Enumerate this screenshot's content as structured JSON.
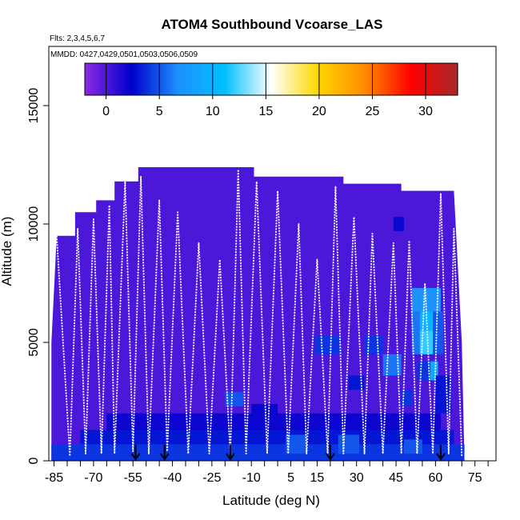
{
  "chart_data": {
    "type": "heatmap",
    "title": "ATOM4 Southbound Vcoarse_LAS",
    "flights_label": "Flts: 2,3,4,5,6,7",
    "mmdd_label": "MMDD: 0427,0429,0501,0503,0506,0509",
    "xlabel": "Latitude (deg N)",
    "ylabel": "Altitude (m)",
    "xlim": [
      -87,
      83
    ],
    "ylim": [
      0,
      17500
    ],
    "x_ticks": [
      -85,
      -70,
      -55,
      -40,
      -25,
      -10,
      5,
      15,
      30,
      45,
      60,
      75
    ],
    "x_ticks_unlabeled": [
      -80,
      -75,
      -65,
      -60,
      -50,
      -45,
      -35,
      -30,
      -20,
      -15,
      -5,
      0,
      10,
      20,
      25,
      35,
      40,
      50,
      55,
      65,
      70,
      80
    ],
    "y_ticks": [
      0,
      5000,
      10000,
      15000
    ],
    "colorbar": {
      "ticks": [
        0,
        5,
        10,
        15,
        20,
        25,
        30
      ],
      "range": [
        -2,
        33
      ],
      "colors": [
        "#8a2be2",
        "#0000cd",
        "#1e90ff",
        "#00bfff",
        "#ffffff",
        "#ffd700",
        "#ff8c00",
        "#ff0000",
        "#a52a2a"
      ]
    },
    "background_value": 0,
    "profile_envelope": [
      {
        "x": -86,
        "top": 5000
      },
      {
        "x": -84,
        "top": 9500
      },
      {
        "x": -77,
        "top": 9500
      },
      {
        "x": -77,
        "top": 10500
      },
      {
        "x": -69,
        "top": 10500
      },
      {
        "x": -69,
        "top": 11000
      },
      {
        "x": -62,
        "top": 11000
      },
      {
        "x": -62,
        "top": 11800
      },
      {
        "x": -53,
        "top": 11800
      },
      {
        "x": -53,
        "top": 12400
      },
      {
        "x": -9,
        "top": 12400
      },
      {
        "x": -9,
        "top": 12000
      },
      {
        "x": 25,
        "top": 12000
      },
      {
        "x": 25,
        "top": 11700
      },
      {
        "x": 47,
        "top": 11700
      },
      {
        "x": 47,
        "top": 11400
      },
      {
        "x": 67,
        "top": 11400
      },
      {
        "x": 70,
        "top": 5000
      },
      {
        "x": 71,
        "top": 0
      }
    ],
    "elevated_cells": [
      {
        "x0": 54,
        "x1": 59,
        "y0": 4500,
        "y1": 5500,
        "value": 12
      },
      {
        "x0": 54,
        "x1": 59,
        "y0": 5500,
        "y1": 6300,
        "value": 10
      },
      {
        "x0": 51,
        "x1": 62,
        "y0": 6300,
        "y1": 7300,
        "value": 7
      },
      {
        "x0": 51,
        "x1": 54,
        "y0": 4500,
        "y1": 6300,
        "value": 6
      },
      {
        "x0": 59,
        "x1": 63,
        "y0": 4500,
        "y1": 6300,
        "value": 5
      },
      {
        "x0": 58,
        "x1": 61,
        "y0": 3400,
        "y1": 4200,
        "value": 9
      },
      {
        "x0": 53,
        "x1": 58,
        "y0": 3400,
        "y1": 4200,
        "value": 4
      },
      {
        "x0": 40,
        "x1": 47,
        "y0": 3600,
        "y1": 4500,
        "value": 6
      },
      {
        "x0": 14,
        "x1": 24,
        "y0": 4500,
        "y1": 5300,
        "value": 4
      },
      {
        "x0": 33,
        "x1": 40,
        "y0": 4500,
        "y1": 5300,
        "value": 4
      },
      {
        "x0": 27,
        "x1": 33,
        "y0": 3000,
        "y1": 3600,
        "value": 3
      },
      {
        "x0": 47,
        "x1": 51,
        "y0": 2300,
        "y1": 3000,
        "value": 4
      },
      {
        "x0": -20,
        "x1": -13,
        "y0": 2300,
        "y1": 2900,
        "value": 5
      },
      {
        "x0": -86,
        "x1": 71,
        "y0": 0,
        "y1": 700,
        "value": 4
      },
      {
        "x0": -75,
        "x1": 67,
        "y0": 700,
        "y1": 1300,
        "value": 3
      },
      {
        "x0": -65,
        "x1": 62,
        "y0": 1300,
        "y1": 2000,
        "value": 2
      },
      {
        "x0": 60,
        "x1": 66,
        "y0": 2000,
        "y1": 3600,
        "value": 3
      },
      {
        "x0": 44,
        "x1": 48,
        "y0": 9700,
        "y1": 10300,
        "value": 2
      },
      {
        "x0": -10,
        "x1": 0,
        "y0": 1800,
        "y1": 2400,
        "value": 2
      },
      {
        "x0": 3,
        "x1": 11,
        "y0": 300,
        "y1": 1100,
        "value": 5
      },
      {
        "x0": 23,
        "x1": 31,
        "y0": 300,
        "y1": 1100,
        "value": 5
      },
      {
        "x0": 48,
        "x1": 55,
        "y0": 300,
        "y1": 900,
        "value": 5
      }
    ],
    "flight_track_turns": [
      {
        "x": -84,
        "y": 9500
      },
      {
        "x": -79,
        "y": 200
      },
      {
        "x": -76,
        "y": 9800
      },
      {
        "x": -73,
        "y": 300
      },
      {
        "x": -70,
        "y": 10200
      },
      {
        "x": -67,
        "y": 300
      },
      {
        "x": -64,
        "y": 10800
      },
      {
        "x": -62,
        "y": 300
      },
      {
        "x": -58,
        "y": 11800
      },
      {
        "x": -55,
        "y": 400
      },
      {
        "x": -52,
        "y": 12000
      },
      {
        "x": -49,
        "y": 300
      },
      {
        "x": -45,
        "y": 11000
      },
      {
        "x": -42,
        "y": 400
      },
      {
        "x": -38,
        "y": 10500
      },
      {
        "x": -34,
        "y": 300
      },
      {
        "x": -30,
        "y": 9200
      },
      {
        "x": -26,
        "y": 300
      },
      {
        "x": -22,
        "y": 8500
      },
      {
        "x": -18,
        "y": 300
      },
      {
        "x": -15,
        "y": 12300
      },
      {
        "x": -12,
        "y": 300
      },
      {
        "x": -8,
        "y": 11800
      },
      {
        "x": -4,
        "y": 300
      },
      {
        "x": 0,
        "y": 11400
      },
      {
        "x": 4,
        "y": 300
      },
      {
        "x": 8,
        "y": 10000
      },
      {
        "x": 11,
        "y": 300
      },
      {
        "x": 15,
        "y": 8500
      },
      {
        "x": 19,
        "y": 300
      },
      {
        "x": 22,
        "y": 11600
      },
      {
        "x": 25,
        "y": 300
      },
      {
        "x": 29,
        "y": 10300
      },
      {
        "x": 33,
        "y": 300
      },
      {
        "x": 36,
        "y": 9600
      },
      {
        "x": 40,
        "y": 300
      },
      {
        "x": 44,
        "y": 9200
      },
      {
        "x": 47,
        "y": 300
      },
      {
        "x": 50,
        "y": 9300
      },
      {
        "x": 53,
        "y": 300
      },
      {
        "x": 56,
        "y": 7500
      },
      {
        "x": 59,
        "y": 300
      },
      {
        "x": 62,
        "y": 11300
      },
      {
        "x": 65,
        "y": 300
      },
      {
        "x": 67,
        "y": 9800
      },
      {
        "x": 70,
        "y": 200
      }
    ],
    "arrow_markers_x": [
      -54,
      -43,
      -18,
      20,
      62
    ]
  }
}
